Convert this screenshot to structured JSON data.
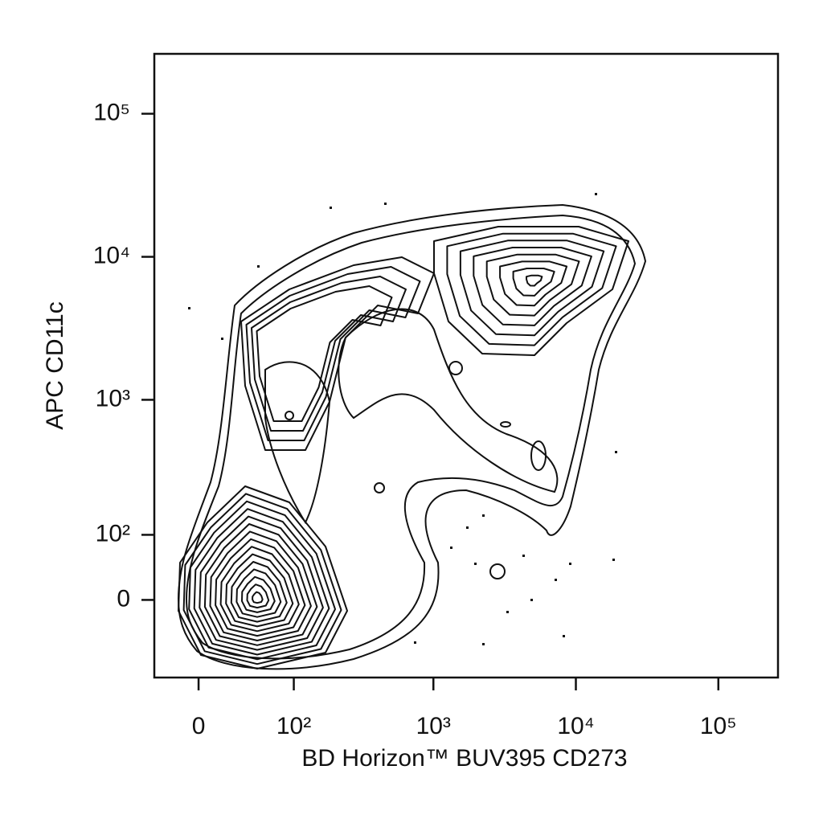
{
  "chart_data": {
    "type": "contour",
    "x_label": "BD Horizon™ BUV395 CD273",
    "y_label": "APC CD11c",
    "xscale": "biexponential",
    "yscale": "biexponential",
    "xlim": [
      -35,
      262144
    ],
    "ylim": [
      -128,
      262144
    ],
    "xticks": [
      0,
      {
        "value": 100,
        "label": "10²"
      },
      {
        "value": 1000,
        "label": "10³"
      },
      {
        "value": 10000,
        "label": "10⁴"
      },
      {
        "value": 100000,
        "label": "10⁵"
      }
    ],
    "yticks": [
      0,
      {
        "value": 100,
        "label": "10²"
      },
      {
        "value": 1000,
        "label": "10³"
      },
      {
        "value": 10000,
        "label": "10⁴"
      },
      {
        "value": 100000,
        "label": "10⁵"
      }
    ]
  }
}
